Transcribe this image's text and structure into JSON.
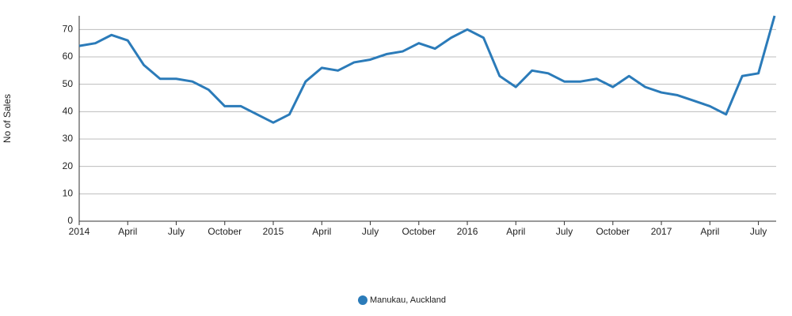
{
  "chart_data": {
    "type": "line",
    "y_label": "No of Sales",
    "categories": [
      "2014",
      null,
      null,
      "April",
      null,
      null,
      "July",
      null,
      null,
      "October",
      null,
      null,
      "2015",
      null,
      null,
      "April",
      null,
      null,
      "July",
      null,
      null,
      "October",
      null,
      null,
      "2016",
      null,
      null,
      "April",
      null,
      null,
      "July",
      null,
      null,
      "October",
      null,
      null,
      "2017",
      null,
      null,
      "April",
      null,
      null,
      "July",
      null
    ],
    "series": [
      {
        "name": "Manukau, Auckland",
        "color": "#2b7bb9",
        "values": [
          64,
          65,
          68,
          66,
          57,
          52,
          52,
          51,
          48,
          42,
          42,
          39,
          36,
          39,
          51,
          56,
          55,
          58,
          59,
          61,
          62,
          65,
          63,
          67,
          70,
          67,
          53,
          49,
          55,
          54,
          51,
          51,
          52,
          49,
          53,
          49,
          47,
          46,
          44,
          42,
          39,
          53,
          54,
          75
        ]
      }
    ],
    "ylim": [
      0,
      75
    ],
    "yticks": [
      0,
      10,
      20,
      30,
      40,
      50,
      60,
      70
    ],
    "grid": true,
    "legend": "bottom"
  }
}
